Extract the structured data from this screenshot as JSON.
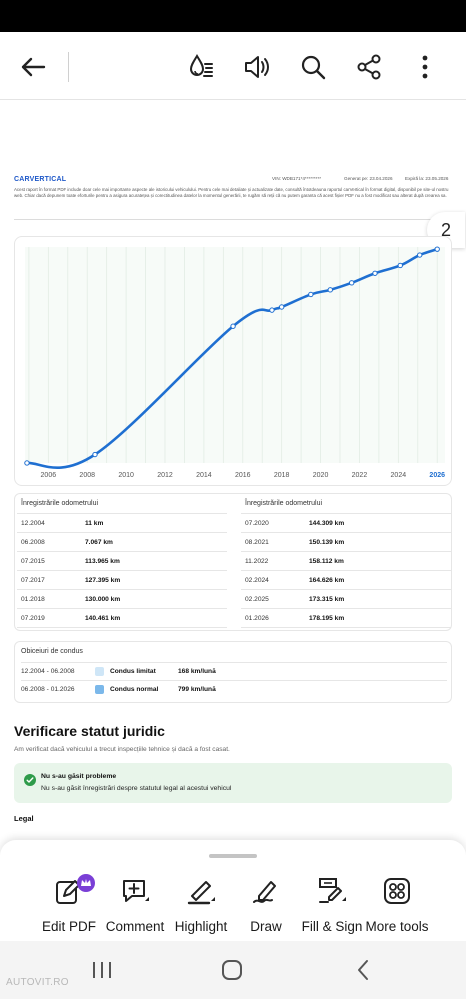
{
  "toolbar": {
    "back_icon": "arrow-left-icon",
    "icons": [
      "liquid-mode-icon",
      "read-aloud-icon",
      "search-icon",
      "share-icon",
      "more-vertical-icon"
    ]
  },
  "doc_header": {
    "brand": "CARVERTICAL",
    "vin": "VIN: WDB171*4*********",
    "generated": "Generat pe: 23.04.2026",
    "expires": "Expiră la: 23.05.2026",
    "note": "Acest raport în format PDF include doar cele mai importante aspecte ale istoricului vehiculului. Pentru cele mai detaliate și actualizate date, consultă întotdeauna raportul carVertical în format digital, disponibil pe site-ul nostru web. Chiar dacă depunem toate eforturile pentru a asigura acuratețea și corectitudinea datelor la momentul generării, te rugăm să reții că nu putem garanta că acest fișier PDF nu a fost modificat sau alterat după crearea sa."
  },
  "page_number": "2",
  "chart_data": {
    "type": "line",
    "x_tick_labels": [
      "2006",
      "2008",
      "2010",
      "2012",
      "2014",
      "2016",
      "2018",
      "2020",
      "2022",
      "2024",
      "2026"
    ],
    "highlighted_tick": "2026",
    "ylabel": "",
    "xlabel": "",
    "grid": true,
    "color": "#1f6fd1",
    "points": [
      {
        "x": 2004.9,
        "y": 11
      },
      {
        "x": 2008.4,
        "y": 7067
      },
      {
        "x": 2015.5,
        "y": 113965
      },
      {
        "x": 2017.5,
        "y": 127395
      },
      {
        "x": 2018.0,
        "y": 130000
      },
      {
        "x": 2019.5,
        "y": 140461
      },
      {
        "x": 2020.5,
        "y": 144309
      },
      {
        "x": 2021.6,
        "y": 150139
      },
      {
        "x": 2022.8,
        "y": 158112
      },
      {
        "x": 2024.1,
        "y": 164626
      },
      {
        "x": 2025.1,
        "y": 173315
      },
      {
        "x": 2026.0,
        "y": 178195
      }
    ],
    "ylim": [
      0,
      180000
    ],
    "xlim": [
      2004.8,
      2026.4
    ]
  },
  "odometer": {
    "title": "Înregistrările odometrului",
    "left": [
      {
        "date": "12.2004",
        "value": "11 km"
      },
      {
        "date": "06.2008",
        "value": "7.067 km"
      },
      {
        "date": "07.2015",
        "value": "113.965 km"
      },
      {
        "date": "07.2017",
        "value": "127.395 km"
      },
      {
        "date": "01.2018",
        "value": "130.000 km"
      },
      {
        "date": "07.2019",
        "value": "140.461 km"
      }
    ],
    "right": [
      {
        "date": "07.2020",
        "value": "144.309 km"
      },
      {
        "date": "08.2021",
        "value": "150.139 km"
      },
      {
        "date": "11.2022",
        "value": "158.112 km"
      },
      {
        "date": "02.2024",
        "value": "164.626 km"
      },
      {
        "date": "02.2025",
        "value": "173.315 km"
      },
      {
        "date": "01.2026",
        "value": "178.195 km"
      }
    ]
  },
  "driving_habits": {
    "title": "Obiceiuri de condus",
    "rows": [
      {
        "period": "12.2004 - 06.2008",
        "label": "Condus limitat",
        "value": "168 km/lună",
        "color": "#cfe6f7"
      },
      {
        "period": "06.2008 - 01.2026",
        "label": "Condus normal",
        "value": "799 km/lună",
        "color": "#7bb8ea"
      }
    ]
  },
  "legal": {
    "title": "Verificare statut juridic",
    "subtitle": "Am verificat dacă vehiculul a trecut inspecțiile tehnice și dacă a fost casat.",
    "box_title": "Nu s-au găsit probleme",
    "box_text": "Nu s-au găsit înregistrări despre statutul legal al acestui vehicul",
    "section_label": "Legal"
  },
  "tools": [
    {
      "label": "Edit PDF",
      "icon": "edit-pdf-icon"
    },
    {
      "label": "Comment",
      "icon": "comment-icon"
    },
    {
      "label": "Highlight",
      "icon": "highlight-icon"
    },
    {
      "label": "Draw",
      "icon": "draw-icon"
    },
    {
      "label": "Fill & Sign",
      "icon": "fill-sign-icon"
    },
    {
      "label": "More tools",
      "icon": "more-tools-icon"
    }
  ],
  "nav": {
    "icons": [
      "recents-icon",
      "home-icon",
      "back-icon"
    ]
  },
  "watermark": "AUTOVIT.RO"
}
